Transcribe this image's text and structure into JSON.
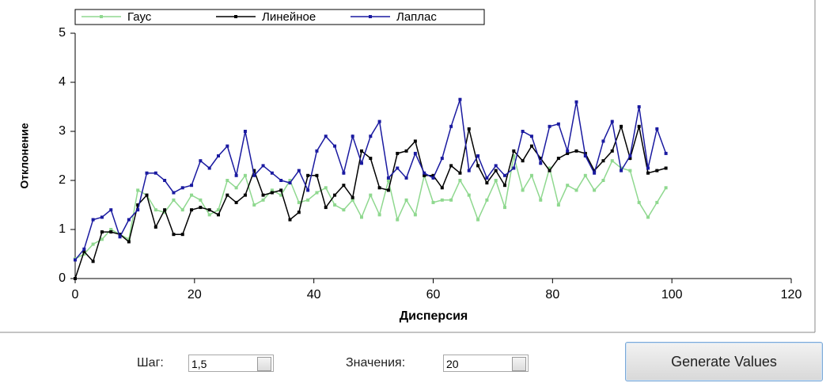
{
  "chart_data": {
    "type": "line",
    "xlabel": "Дисперсия",
    "ylabel": "Отклонение",
    "xlim": [
      0,
      120
    ],
    "xticks": [
      0,
      20,
      40,
      60,
      80,
      100,
      120
    ],
    "ylim": [
      0,
      5
    ],
    "yticks": [
      0,
      1,
      2,
      3,
      4,
      5
    ],
    "legend": "top",
    "x": [
      0,
      1.5,
      3,
      4.5,
      6,
      7.5,
      9,
      10.5,
      12,
      13.5,
      15,
      16.5,
      18,
      19.5,
      21,
      22.5,
      24,
      25.5,
      27,
      28.5,
      30,
      31.5,
      33,
      34.5,
      36,
      37.5,
      39,
      40.5,
      42,
      43.5,
      45,
      46.5,
      48,
      49.5,
      51,
      52.5,
      54,
      55.5,
      57,
      58.5,
      60,
      61.5,
      63,
      64.5,
      66,
      67.5,
      69,
      70.5,
      72,
      73.5,
      75,
      76.5,
      78,
      79.5,
      81,
      82.5,
      84,
      85.5,
      87,
      88.5,
      90,
      91.5,
      93,
      94.5,
      96,
      97.5,
      99
    ],
    "series": [
      {
        "name": "Гаус",
        "color": "#8fd88f",
        "values": [
          0.4,
          0.5,
          0.7,
          0.8,
          1.0,
          0.9,
          0.8,
          1.8,
          1.7,
          1.4,
          1.35,
          1.6,
          1.4,
          1.7,
          1.6,
          1.3,
          1.4,
          2.0,
          1.85,
          2.1,
          1.5,
          1.6,
          1.8,
          1.7,
          2.0,
          1.55,
          1.6,
          1.75,
          1.85,
          1.5,
          1.4,
          1.6,
          1.25,
          1.7,
          1.3,
          2.0,
          1.2,
          1.6,
          1.3,
          2.1,
          1.55,
          1.6,
          1.6,
          2.0,
          1.7,
          1.2,
          1.6,
          2.0,
          1.45,
          2.5,
          1.8,
          2.1,
          1.6,
          2.25,
          1.5,
          1.9,
          1.8,
          2.1,
          1.8,
          2.0,
          2.4,
          2.25,
          2.2,
          1.55,
          1.25,
          1.55,
          1.85
        ]
      },
      {
        "name": "Линейное",
        "color": "#000000",
        "values": [
          0.0,
          0.55,
          0.35,
          0.95,
          0.95,
          0.9,
          0.75,
          1.5,
          1.7,
          1.05,
          1.4,
          0.9,
          0.9,
          1.4,
          1.45,
          1.4,
          1.3,
          1.7,
          1.55,
          1.7,
          2.2,
          1.7,
          1.75,
          1.8,
          1.2,
          1.35,
          2.1,
          2.1,
          1.45,
          1.7,
          1.9,
          1.65,
          2.6,
          2.45,
          1.85,
          1.8,
          2.55,
          2.6,
          2.8,
          2.1,
          2.1,
          1.85,
          2.3,
          2.15,
          3.05,
          2.3,
          1.95,
          2.2,
          1.9,
          2.6,
          2.4,
          2.7,
          2.45,
          2.2,
          2.45,
          2.55,
          2.6,
          2.55,
          2.2,
          2.4,
          2.6,
          3.1,
          2.45,
          3.1,
          2.15,
          2.2,
          2.25
        ]
      },
      {
        "name": "Лаплас",
        "color": "#1a1aa0",
        "values": [
          0.38,
          0.6,
          1.2,
          1.25,
          1.4,
          0.85,
          1.2,
          1.4,
          2.15,
          2.15,
          2.0,
          1.75,
          1.85,
          1.9,
          2.4,
          2.25,
          2.5,
          2.7,
          2.1,
          3.0,
          2.1,
          2.3,
          2.15,
          2.0,
          1.95,
          2.2,
          1.8,
          2.6,
          2.9,
          2.7,
          2.15,
          2.9,
          2.35,
          2.9,
          3.2,
          2.05,
          2.25,
          2.05,
          2.55,
          2.15,
          2.05,
          2.45,
          3.1,
          3.65,
          2.2,
          2.5,
          2.05,
          2.3,
          2.1,
          2.25,
          3.0,
          2.9,
          2.35,
          3.1,
          3.15,
          2.6,
          3.6,
          2.5,
          2.15,
          2.8,
          3.2,
          2.2,
          2.5,
          3.5,
          2.25,
          3.05,
          2.55
        ]
      }
    ]
  },
  "controls": {
    "step_label": "Шаг:",
    "step_value": "1,5",
    "count_label": "Значения:",
    "count_value": "20",
    "button": "Generate Values"
  }
}
